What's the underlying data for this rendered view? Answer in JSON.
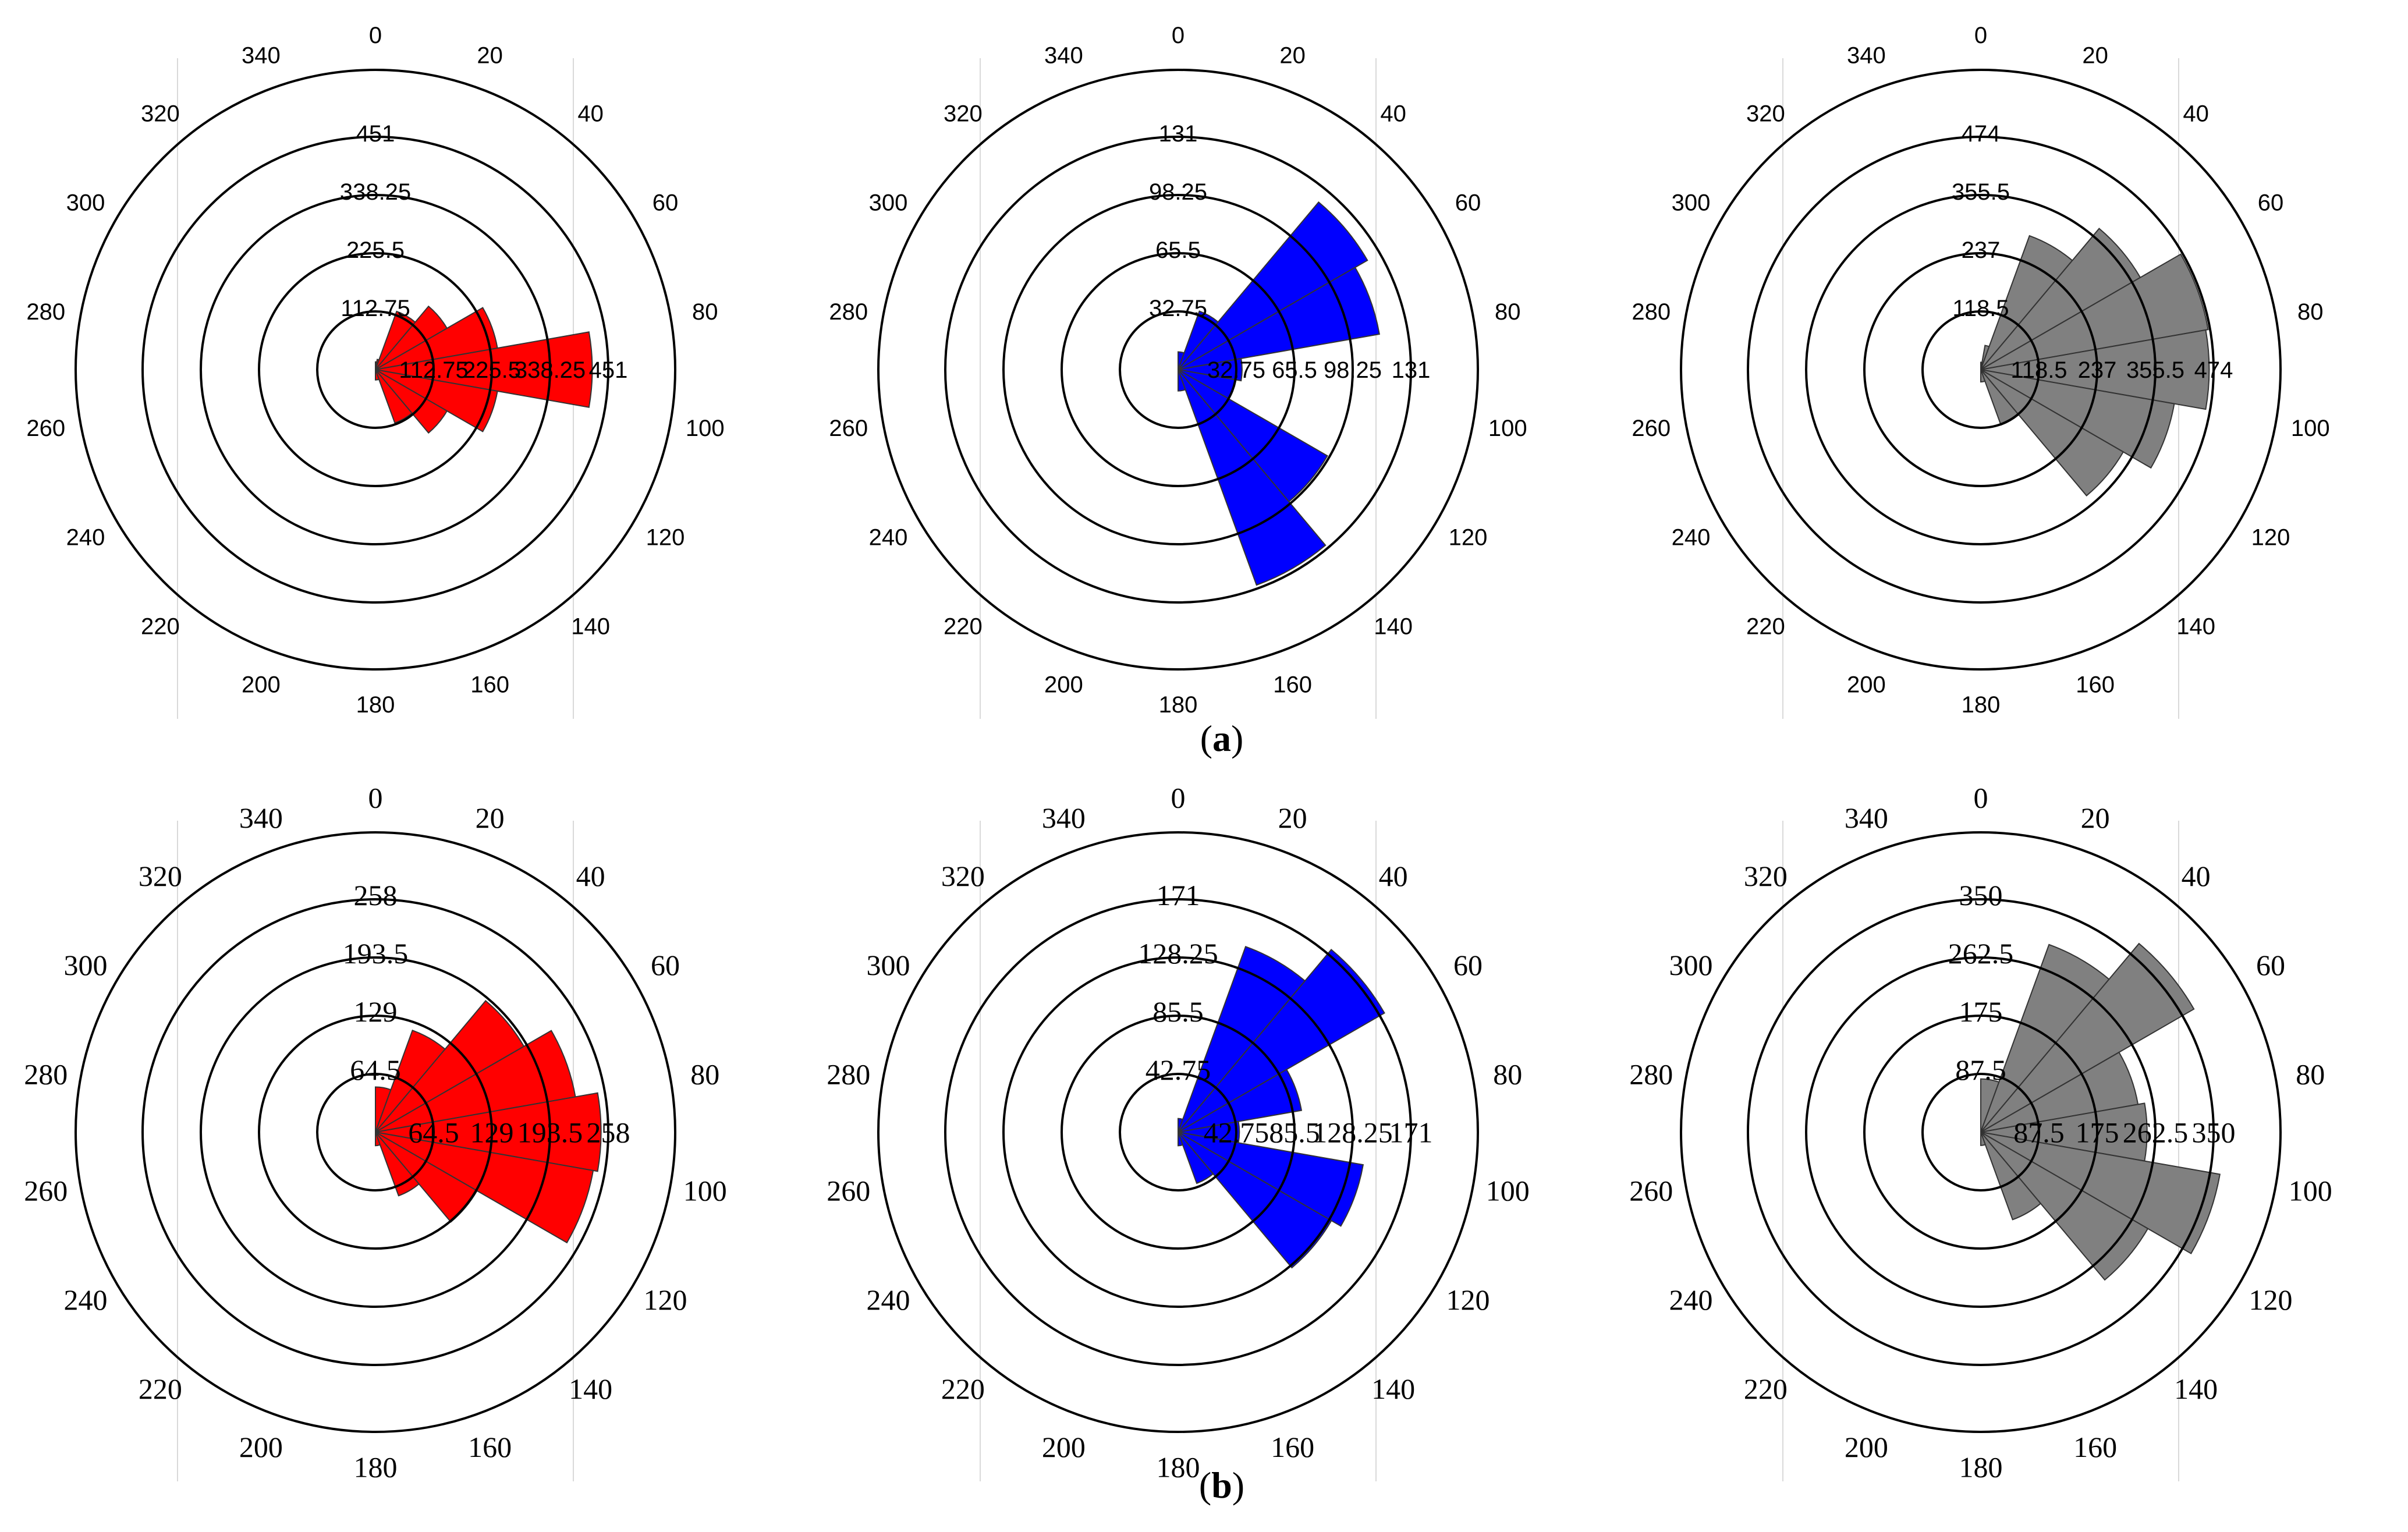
{
  "captions": [
    {
      "open": "(",
      "letter": "a",
      "close": ")"
    },
    {
      "open": "(",
      "letter": "b",
      "close": ")"
    }
  ],
  "angle_labels": [
    "0",
    "20",
    "40",
    "60",
    "80",
    "100",
    "120",
    "140",
    "160",
    "180",
    "200",
    "220",
    "240",
    "260",
    "280",
    "300",
    "320",
    "340"
  ],
  "chart_data": [
    {
      "type": "polar-bar",
      "color": "#ff0000",
      "font": "sans",
      "rmax": 451,
      "ring_labels": [
        "112.75",
        "225.5",
        "338.25",
        "451"
      ],
      "sectors": [
        {
          "start": 0,
          "end": 10,
          "value": 15
        },
        {
          "start": 10,
          "end": 20,
          "value": 20
        },
        {
          "start": 20,
          "end": 40,
          "value": 120
        },
        {
          "start": 40,
          "end": 60,
          "value": 160
        },
        {
          "start": 60,
          "end": 80,
          "value": 240
        },
        {
          "start": 80,
          "end": 100,
          "value": 420
        },
        {
          "start": 100,
          "end": 120,
          "value": 240
        },
        {
          "start": 120,
          "end": 140,
          "value": 160
        },
        {
          "start": 140,
          "end": 160,
          "value": 110
        },
        {
          "start": 160,
          "end": 180,
          "value": 20
        }
      ]
    },
    {
      "type": "polar-bar",
      "color": "#0000ff",
      "font": "sans",
      "rmax": 131,
      "ring_labels": [
        "32.75",
        "65.5",
        "98.25",
        "131"
      ],
      "sectors": [
        {
          "start": 0,
          "end": 20,
          "value": 10
        },
        {
          "start": 20,
          "end": 40,
          "value": 35
        },
        {
          "start": 40,
          "end": 60,
          "value": 123
        },
        {
          "start": 60,
          "end": 80,
          "value": 115
        },
        {
          "start": 80,
          "end": 100,
          "value": 36
        },
        {
          "start": 100,
          "end": 120,
          "value": 33
        },
        {
          "start": 120,
          "end": 140,
          "value": 97
        },
        {
          "start": 140,
          "end": 160,
          "value": 129
        },
        {
          "start": 160,
          "end": 180,
          "value": 12
        }
      ]
    },
    {
      "type": "polar-bar",
      "color": "#808080",
      "font": "sans",
      "rmax": 474,
      "ring_labels": [
        "118.5",
        "237",
        "355.5",
        "474"
      ],
      "sectors": [
        {
          "start": 0,
          "end": 10,
          "value": 15
        },
        {
          "start": 10,
          "end": 20,
          "value": 50
        },
        {
          "start": 20,
          "end": 40,
          "value": 290
        },
        {
          "start": 40,
          "end": 60,
          "value": 375
        },
        {
          "start": 60,
          "end": 80,
          "value": 470
        },
        {
          "start": 80,
          "end": 100,
          "value": 465
        },
        {
          "start": 100,
          "end": 120,
          "value": 400
        },
        {
          "start": 120,
          "end": 140,
          "value": 335
        },
        {
          "start": 140,
          "end": 160,
          "value": 120
        },
        {
          "start": 160,
          "end": 180,
          "value": 25
        }
      ]
    },
    {
      "type": "polar-bar",
      "color": "#ff0000",
      "font": "serif",
      "rmax": 258,
      "ring_labels": [
        "64.5",
        "129",
        "193.5",
        "258"
      ],
      "sectors": [
        {
          "start": 0,
          "end": 20,
          "value": 50
        },
        {
          "start": 20,
          "end": 40,
          "value": 120
        },
        {
          "start": 40,
          "end": 60,
          "value": 190
        },
        {
          "start": 60,
          "end": 80,
          "value": 225
        },
        {
          "start": 80,
          "end": 100,
          "value": 250
        },
        {
          "start": 100,
          "end": 120,
          "value": 245
        },
        {
          "start": 120,
          "end": 140,
          "value": 130
        },
        {
          "start": 140,
          "end": 160,
          "value": 75
        },
        {
          "start": 160,
          "end": 180,
          "value": 15
        }
      ]
    },
    {
      "type": "polar-bar",
      "color": "#0000ff",
      "font": "serif",
      "rmax": 171,
      "ring_labels": [
        "42.75",
        "85.5",
        "128.25",
        "171"
      ],
      "sectors": [
        {
          "start": 0,
          "end": 20,
          "value": 10
        },
        {
          "start": 20,
          "end": 40,
          "value": 145
        },
        {
          "start": 40,
          "end": 60,
          "value": 175
        },
        {
          "start": 60,
          "end": 80,
          "value": 92
        },
        {
          "start": 80,
          "end": 100,
          "value": 45
        },
        {
          "start": 100,
          "end": 120,
          "value": 138
        },
        {
          "start": 120,
          "end": 140,
          "value": 130
        },
        {
          "start": 140,
          "end": 160,
          "value": 40
        },
        {
          "start": 160,
          "end": 180,
          "value": 10
        }
      ]
    },
    {
      "type": "polar-bar",
      "color": "#808080",
      "font": "serif",
      "rmax": 350,
      "ring_labels": [
        "87.5",
        "175",
        "262.5",
        "350"
      ],
      "sectors": [
        {
          "start": 0,
          "end": 20,
          "value": 80
        },
        {
          "start": 20,
          "end": 40,
          "value": 300
        },
        {
          "start": 40,
          "end": 60,
          "value": 370
        },
        {
          "start": 60,
          "end": 80,
          "value": 240
        },
        {
          "start": 80,
          "end": 100,
          "value": 250
        },
        {
          "start": 100,
          "end": 120,
          "value": 365
        },
        {
          "start": 120,
          "end": 140,
          "value": 290
        },
        {
          "start": 140,
          "end": 160,
          "value": 140
        },
        {
          "start": 160,
          "end": 180,
          "value": 20
        }
      ]
    }
  ]
}
